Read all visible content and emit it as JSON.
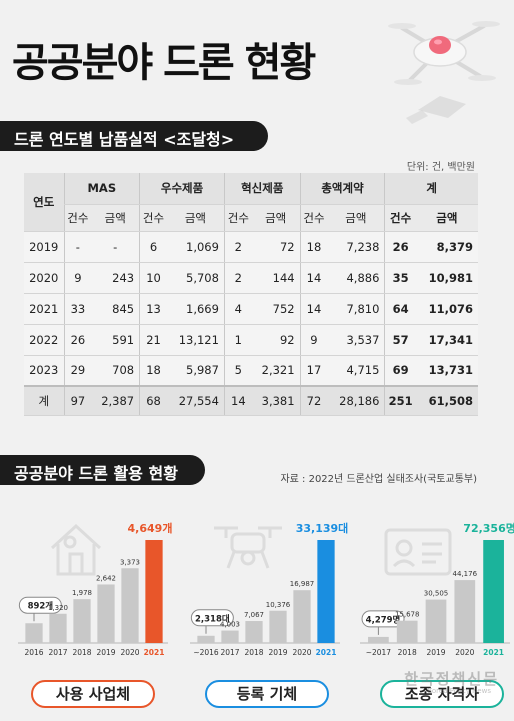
{
  "title": "공공분야 드론 현황",
  "section1": "드론 연도별 납품실적 <조달청>",
  "unit": "단위: 건, 백만원",
  "table": {
    "year_header": "연도",
    "groups": [
      "MAS",
      "우수제품",
      "혁신제품",
      "총액계약",
      "계"
    ],
    "sub": [
      "건수",
      "금액"
    ],
    "rows": [
      [
        "2019",
        "-",
        "-",
        "6",
        "1,069",
        "2",
        "72",
        "18",
        "7,238",
        "26",
        "8,379"
      ],
      [
        "2020",
        "9",
        "243",
        "10",
        "5,708",
        "2",
        "144",
        "14",
        "4,886",
        "35",
        "10,981"
      ],
      [
        "2021",
        "33",
        "845",
        "13",
        "1,669",
        "4",
        "752",
        "14",
        "7,810",
        "64",
        "11,076"
      ],
      [
        "2022",
        "26",
        "591",
        "21",
        "13,121",
        "1",
        "92",
        "9",
        "3,537",
        "57",
        "17,341"
      ],
      [
        "2023",
        "29",
        "708",
        "18",
        "5,987",
        "5",
        "2,321",
        "17",
        "4,715",
        "69",
        "13,731"
      ]
    ],
    "total": [
      "계",
      "97",
      "2,387",
      "68",
      "27,554",
      "14",
      "3,381",
      "72",
      "28,186",
      "251",
      "61,508"
    ]
  },
  "section2": "공공분야 드론 활용 현황",
  "source": "자료 : 2022년 드론산업 실태조사(국토교통부)",
  "pills": [
    "사용 사업체",
    "등록 기체",
    "조종 자격자"
  ],
  "watermark": "한국정책신문",
  "watermark_sub": "Korea Policy News",
  "colors": {
    "bar_gray": "#c8c8c8",
    "highlight1": "#e8562a",
    "highlight2": "#1a8ee0",
    "highlight3": "#1bb39b",
    "dark": "#1c1c1c"
  },
  "chart_data": [
    {
      "type": "bar",
      "icon": "house-icon",
      "categories": [
        "2016",
        "2017",
        "2018",
        "2019",
        "2020",
        "2021"
      ],
      "values": [
        892,
        1320,
        1978,
        2642,
        3373,
        4649
      ],
      "labels": [
        "892개",
        "1,320",
        "1,978",
        "2,642",
        "3,373",
        "4,649개"
      ],
      "callout_index": 0,
      "highlight_index": 5
    },
    {
      "type": "bar",
      "icon": "drone-icon",
      "categories": [
        "~2016",
        "2017",
        "2018",
        "2019",
        "2020",
        "2021"
      ],
      "values": [
        2318,
        4003,
        7067,
        10376,
        16987,
        33139
      ],
      "labels": [
        "2,318대",
        "4,003",
        "7,067",
        "10,376",
        "16,987",
        "33,139대"
      ],
      "callout_index": 0,
      "highlight_index": 5
    },
    {
      "type": "bar",
      "icon": "id-card-icon",
      "categories": [
        "~2017",
        "2018",
        "2019",
        "2020",
        "2021"
      ],
      "values": [
        4279,
        15678,
        30505,
        44176,
        72356
      ],
      "labels": [
        "4,279명",
        "15,678",
        "30,505",
        "44,176",
        "72,356명"
      ],
      "callout_index": 0,
      "highlight_index": 4
    }
  ]
}
